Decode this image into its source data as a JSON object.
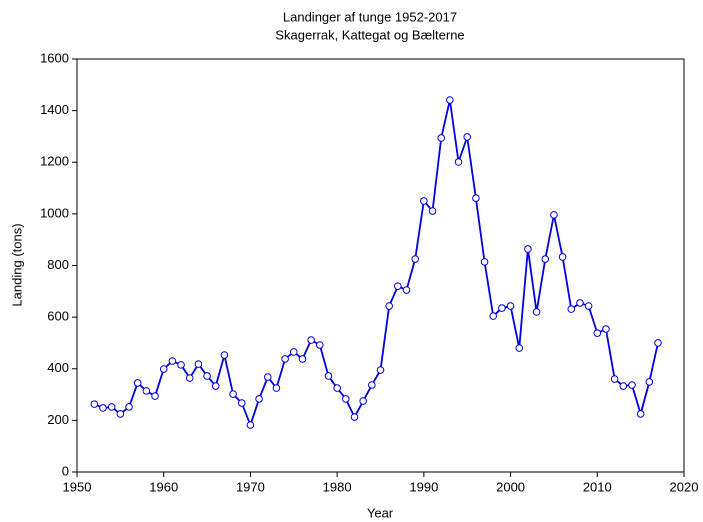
{
  "chart_data": {
    "type": "line",
    "title": "Landinger af tunge 1952-2017",
    "subtitle": "Skagerrak, Kattegat og Bælterne",
    "x_label": "Year",
    "y_label": "Landing (tons)",
    "x": [
      1952,
      1953,
      1954,
      1955,
      1956,
      1957,
      1958,
      1959,
      1960,
      1961,
      1962,
      1963,
      1964,
      1965,
      1966,
      1967,
      1968,
      1969,
      1970,
      1971,
      1972,
      1973,
      1974,
      1975,
      1976,
      1977,
      1978,
      1979,
      1980,
      1981,
      1982,
      1983,
      1984,
      1985,
      1986,
      1987,
      1988,
      1989,
      1990,
      1991,
      1992,
      1993,
      1994,
      1995,
      1996,
      1997,
      1998,
      1999,
      2000,
      2001,
      2002,
      2003,
      2004,
      2005,
      2006,
      2007,
      2008,
      2009,
      2010,
      2011,
      2012,
      2013,
      2014,
      2015,
      2016,
      2017
    ],
    "series": [
      {
        "name": "Landing",
        "color": "#0000e0",
        "values": [
          263,
          248,
          252,
          225,
          252,
          345,
          314,
          294,
          399,
          430,
          415,
          364,
          418,
          372,
          333,
          453,
          302,
          267,
          182,
          283,
          368,
          325,
          438,
          465,
          438,
          511,
          492,
          372,
          325,
          283,
          213,
          275,
          337,
          395,
          643,
          720,
          705,
          825,
          1050,
          1011,
          1294,
          1441,
          1201,
          1298,
          1061,
          814,
          604,
          635,
          643,
          480,
          864,
          620,
          825,
          996,
          833,
          631,
          655,
          643,
          538,
          554,
          360,
          333,
          337,
          225,
          349,
          500
        ]
      }
    ],
    "xlim": [
      1950,
      2020
    ],
    "xticks": [
      1950,
      1960,
      1970,
      1980,
      1990,
      2000,
      2010,
      2020
    ],
    "ylim": [
      0,
      1600
    ],
    "yticks": [
      0,
      200,
      400,
      600,
      800,
      1000,
      1200,
      1400,
      1600
    ],
    "grid": false
  }
}
